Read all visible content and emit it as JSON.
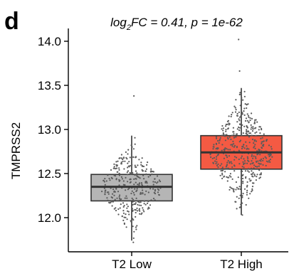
{
  "panel_label": "d",
  "chart_data": {
    "type": "boxplot",
    "title_parts": {
      "log": "log",
      "base": "2",
      "rest": "FC = 0.41, p = 1e-62"
    },
    "xlabel": "",
    "ylabel": "TMPRSS2",
    "ylim": [
      11.6,
      14.1
    ],
    "yticks": [
      12.0,
      12.5,
      13.0,
      13.5,
      14.0
    ],
    "ytick_labels": [
      "12.0",
      "12.5",
      "13.0",
      "13.5",
      "14.0"
    ],
    "grid": false,
    "legend": "none",
    "categories": [
      "T2 Low",
      "T2 High"
    ],
    "series": [
      {
        "category": "T2 Low",
        "color": "#b5b5b5",
        "q1": 12.19,
        "median": 12.35,
        "q3": 12.49,
        "whisker_low": 11.74,
        "whisker_high": 12.93,
        "points_min": 11.72,
        "points_max": 13.38,
        "n_points": 330
      },
      {
        "category": "T2 High",
        "color": "#f45a43",
        "q1": 12.55,
        "median": 12.74,
        "q3": 12.93,
        "whisker_low": 12.03,
        "whisker_high": 13.47,
        "points_min": 12.03,
        "points_max": 14.02,
        "n_points": 460
      }
    ]
  }
}
